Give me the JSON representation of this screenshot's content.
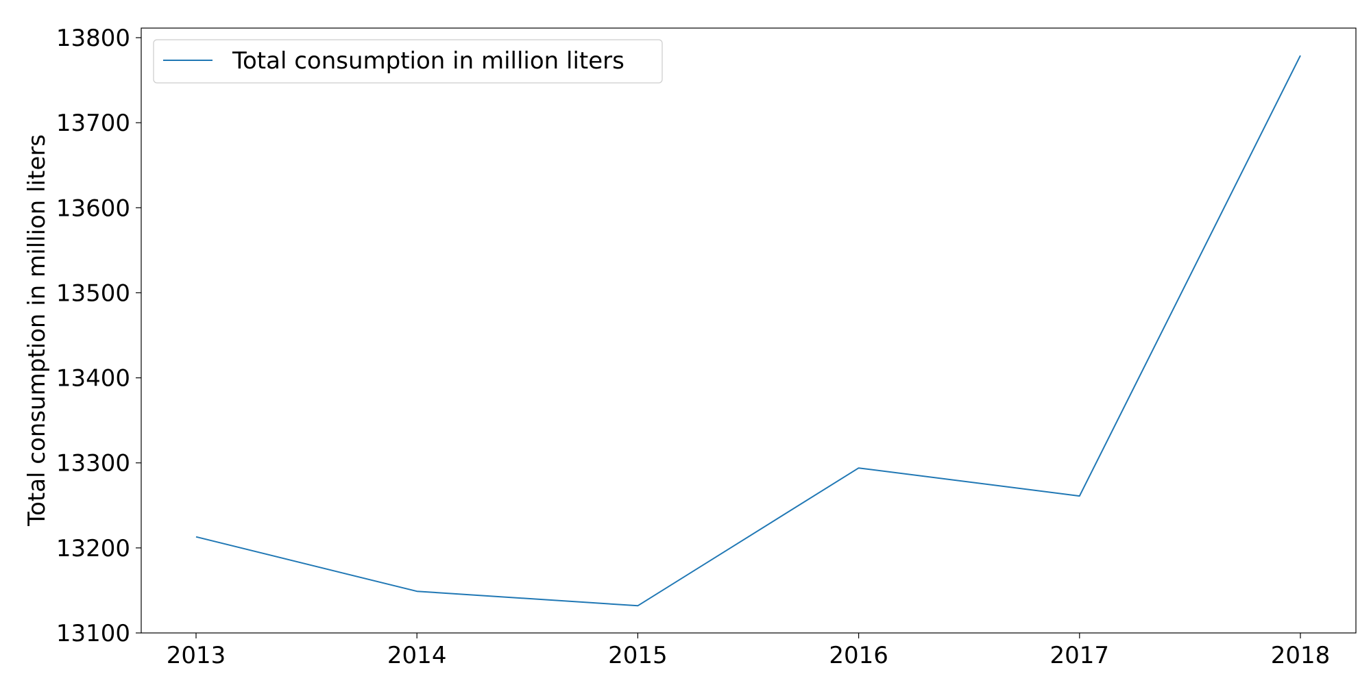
{
  "chart_data": {
    "type": "line",
    "title": "",
    "xlabel": "",
    "ylabel": "Total consumption in million liters",
    "x": [
      "2013",
      "2014",
      "2015",
      "2016",
      "2017",
      "2018"
    ],
    "series": [
      {
        "name": "Total consumption in million liters",
        "color": "#1f77b4",
        "values": [
          13213,
          13149,
          13132,
          13294,
          13261,
          13779
        ]
      }
    ],
    "ylim": [
      13100,
      13800
    ],
    "yticks": [
      "13100",
      "13200",
      "13300",
      "13400",
      "13500",
      "13600",
      "13700",
      "13800"
    ],
    "grid": false,
    "legend_position": "top-left"
  }
}
